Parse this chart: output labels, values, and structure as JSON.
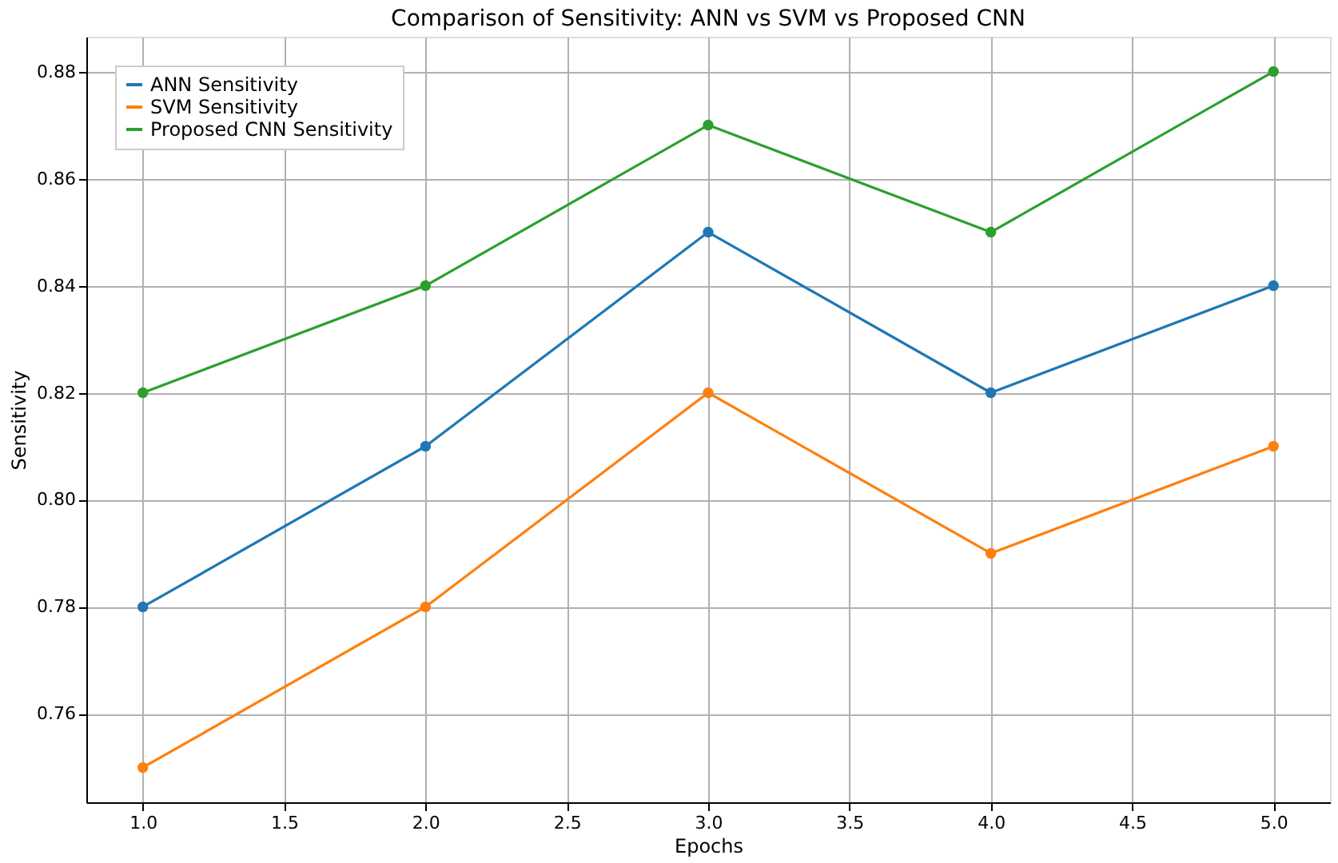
{
  "chart_data": {
    "type": "line",
    "title": "Comparison of Sensitivity: ANN vs SVM vs Proposed CNN",
    "xlabel": "Epochs",
    "ylabel": "Sensitivity",
    "x": [
      1,
      2,
      3,
      4,
      5
    ],
    "series": [
      {
        "name": "ANN Sensitivity",
        "color": "#1f77b4",
        "values": [
          0.78,
          0.81,
          0.85,
          0.82,
          0.84
        ]
      },
      {
        "name": "SVM Sensitivity",
        "color": "#ff7f0e",
        "values": [
          0.75,
          0.78,
          0.82,
          0.79,
          0.81
        ]
      },
      {
        "name": "Proposed CNN Sensitivity",
        "color": "#2ca02c",
        "values": [
          0.82,
          0.84,
          0.87,
          0.85,
          0.88
        ]
      }
    ],
    "xlim": [
      0.8,
      5.2
    ],
    "xticks": [
      {
        "value": 1,
        "label": "1.0"
      },
      1.5,
      {
        "value": 2,
        "label": "2.0"
      },
      2.5,
      {
        "value": 3,
        "label": "3.0"
      },
      3.5,
      {
        "value": 4,
        "label": "4.0"
      },
      4.5,
      {
        "value": 5,
        "label": "5.0"
      }
    ],
    "ylim": [
      0.7435,
      0.8865
    ],
    "yticks": [
      0.76,
      0.78,
      {
        "value": 0.8,
        "label": "0.80"
      },
      0.82,
      0.84,
      0.86,
      0.88
    ],
    "grid": true,
    "legend": "top left",
    "marker": "circle",
    "line_style": "solid"
  }
}
